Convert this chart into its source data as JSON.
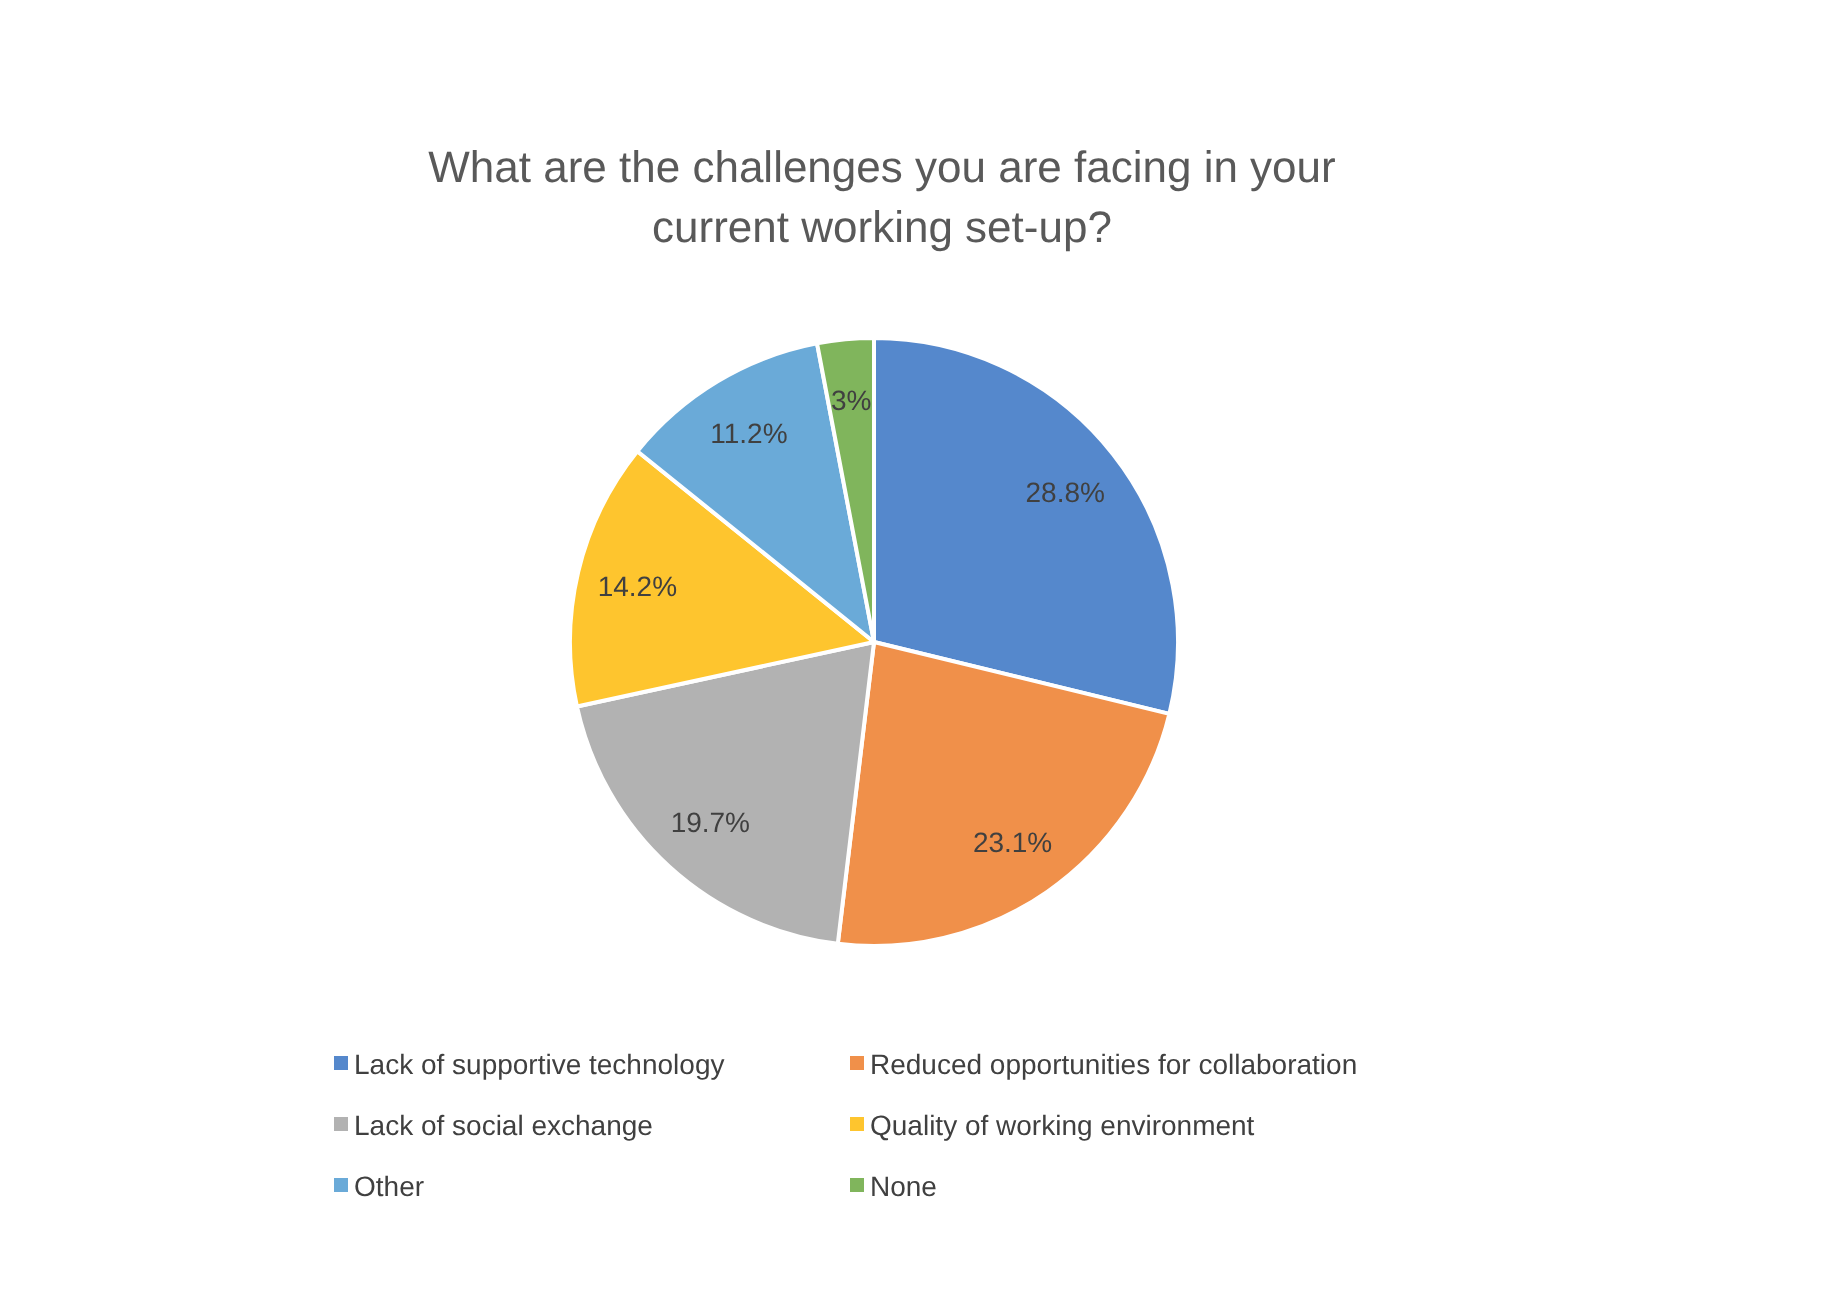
{
  "chart_data": {
    "type": "pie",
    "title": "What are the challenges you are facing in your current working set-up?",
    "categories": [
      "Lack of supportive technology",
      "Reduced opportunities for collaboration",
      "Lack of social exchange",
      "Quality of working environment",
      "Other",
      "None"
    ],
    "values": [
      28.8,
      23.1,
      19.7,
      14.2,
      11.2,
      3
    ],
    "colors": [
      "#5588cc",
      "#f0904a",
      "#b2b2b2",
      "#fec52e",
      "#6aaad8",
      "#80b55c"
    ],
    "value_labels": [
      "28.8%",
      "23.1%",
      "19.7%",
      "14.2%",
      "11.2%",
      "3%"
    ],
    "legend": "bottom"
  }
}
